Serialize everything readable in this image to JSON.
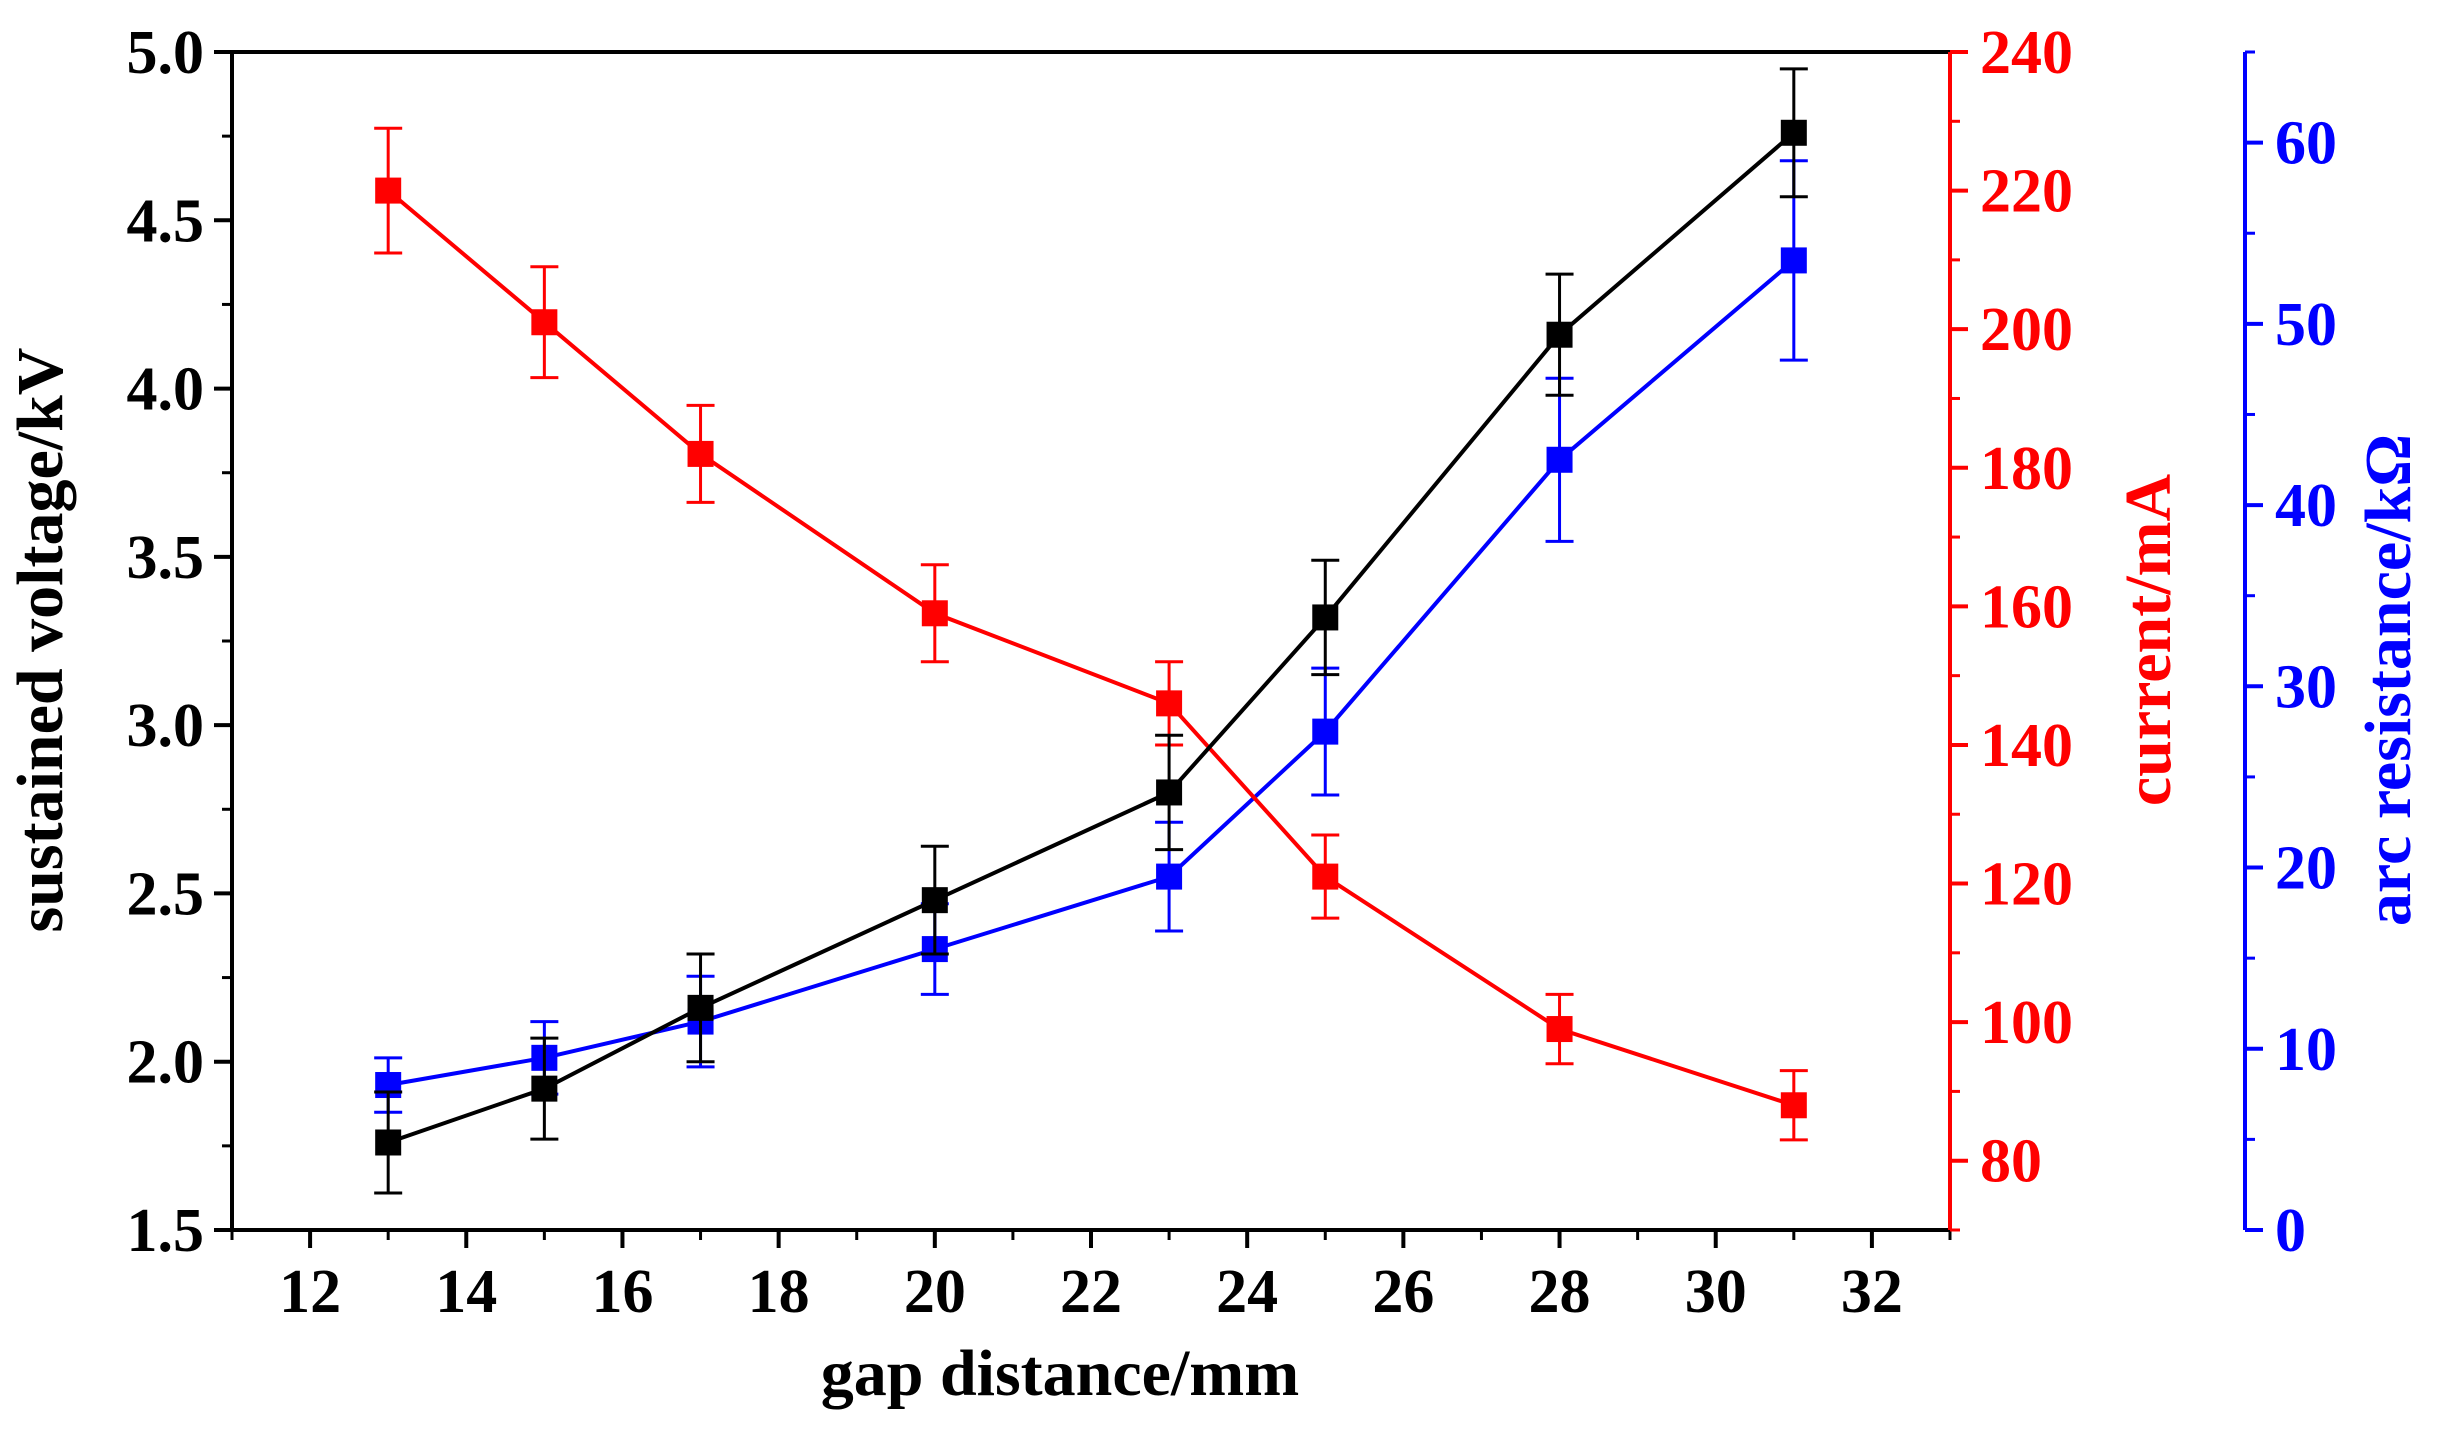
{
  "chart_data": {
    "type": "line",
    "title": "",
    "xlabel": "gap distance/mm",
    "xlim": [
      11,
      33
    ],
    "xticks": [
      12,
      14,
      16,
      18,
      20,
      22,
      24,
      26,
      28,
      30,
      32
    ],
    "x": [
      13,
      15,
      17,
      20,
      23,
      25,
      28,
      31
    ],
    "axes": {
      "left": {
        "label": "sustained voltage/kV",
        "color": "#000000",
        "lim": [
          1.5,
          5.0
        ],
        "ticks": [
          "1.5",
          "2.0",
          "2.5",
          "3.0",
          "3.5",
          "4.0",
          "4.5",
          "5.0"
        ]
      },
      "right": {
        "label": "current/mA",
        "color": "#ff0000",
        "lim": [
          70,
          240
        ],
        "ticks": [
          "80",
          "100",
          "120",
          "140",
          "160",
          "180",
          "200",
          "220",
          "240"
        ]
      },
      "right2": {
        "label": "arc resistance/kΩ",
        "color": "#0000ff",
        "lim": [
          0,
          65
        ],
        "ticks": [
          "0",
          "10",
          "20",
          "30",
          "40",
          "50",
          "60"
        ]
      }
    },
    "series": [
      {
        "name": "sustained voltage",
        "axis": "left",
        "color": "#000000",
        "values": [
          1.76,
          1.92,
          2.16,
          2.48,
          2.8,
          3.32,
          4.16,
          4.76
        ],
        "errors": [
          0.15,
          0.15,
          0.16,
          0.16,
          0.17,
          0.17,
          0.18,
          0.19
        ]
      },
      {
        "name": "current",
        "axis": "right",
        "color": "#ff0000",
        "values": [
          220,
          201,
          182,
          159,
          146,
          121,
          99,
          88
        ],
        "errors": [
          9,
          8,
          7,
          7,
          6,
          6,
          5,
          5
        ]
      },
      {
        "name": "arc resistance",
        "axis": "right2",
        "color": "#0000ff",
        "values": [
          8.0,
          9.5,
          11.5,
          15.5,
          19.5,
          27.5,
          42.5,
          53.5
        ],
        "errors": [
          1.5,
          2.0,
          2.5,
          2.5,
          3.0,
          3.5,
          4.5,
          5.5
        ]
      }
    ]
  }
}
